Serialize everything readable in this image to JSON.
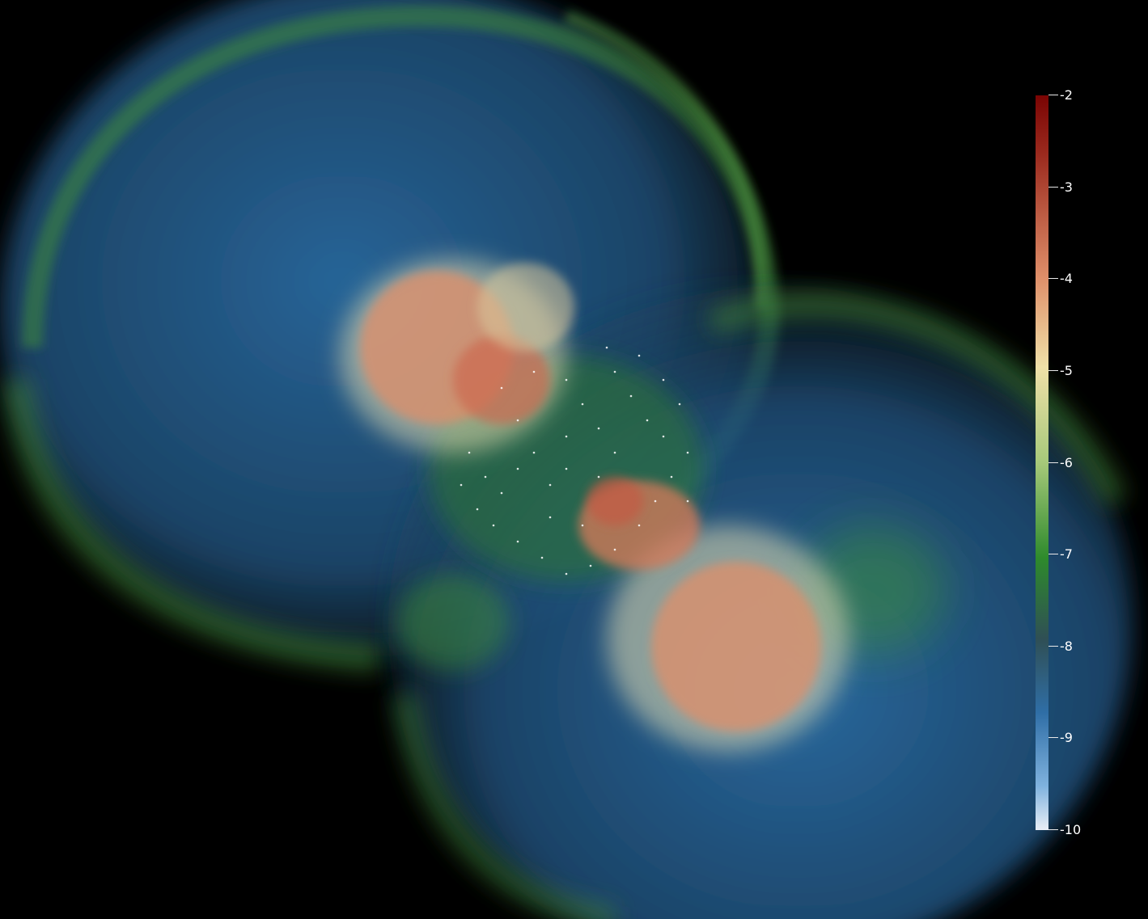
{
  "colorbar": {
    "colors": {
      "max": "#7a0403",
      "dark_red": "#9b2a1e",
      "salmon": "#e0906a",
      "cream": "#efe0a8",
      "light_green": "#a6c97a",
      "green": "#2e8a2c",
      "dark_teal": "#2f4f55",
      "blue": "#2f6ea6",
      "light_blue": "#7fb2de",
      "min": "#e8eef6"
    },
    "ticks": [
      {
        "label": "-2",
        "value": -2
      },
      {
        "label": "-3",
        "value": -3
      },
      {
        "label": "-4",
        "value": -4
      },
      {
        "label": "-5",
        "value": -5
      },
      {
        "label": "-6",
        "value": -6
      },
      {
        "label": "-7",
        "value": -7
      },
      {
        "label": "-8",
        "value": -8
      },
      {
        "label": "-9",
        "value": -9
      },
      {
        "label": "-10",
        "value": -10
      }
    ],
    "range": [
      -10,
      -2
    ]
  }
}
